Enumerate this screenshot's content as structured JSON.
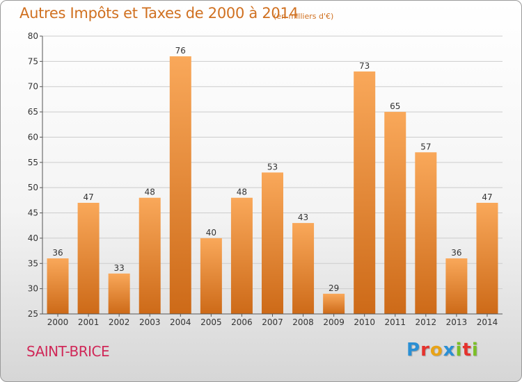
{
  "header": {
    "title": "Autres Impôts et Taxes de 2000 à 2014",
    "unit": "(en milliers d'€)"
  },
  "footer": {
    "city": "SAINT-BRICE",
    "logo": "Proxiti",
    "logo_colors": [
      "#2a8fd4",
      "#e5322d",
      "#e8a317",
      "#2a8fd4",
      "#7bbf27",
      "#e5322d",
      "#7bbf27"
    ]
  },
  "colors": {
    "bar_light": "#f9a85a",
    "bar_dark": "#cd6a18",
    "grid": "#cccccc",
    "axis_text": "#333333"
  },
  "chart_data": {
    "type": "bar",
    "categories": [
      "2000",
      "2001",
      "2002",
      "2003",
      "2004",
      "2005",
      "2006",
      "2007",
      "2008",
      "2009",
      "2010",
      "2011",
      "2012",
      "2013",
      "2014"
    ],
    "values": [
      36,
      47,
      33,
      48,
      76,
      40,
      48,
      53,
      43,
      29,
      73,
      65,
      57,
      36,
      47
    ],
    "title": "Autres Impôts et Taxes de 2000 à 2014",
    "ylim": [
      25,
      80
    ],
    "yticks": [
      25,
      30,
      35,
      40,
      45,
      50,
      55,
      60,
      65,
      70,
      75,
      80
    ],
    "grid": true
  }
}
